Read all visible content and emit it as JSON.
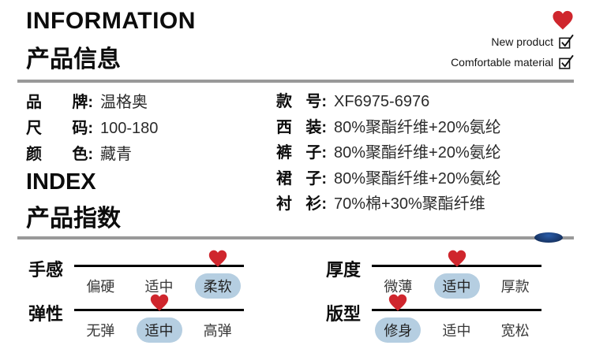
{
  "header": {
    "title_en": "INFORMATION",
    "title_zh": "产品信息",
    "features": [
      {
        "label": "New product",
        "checked": true
      },
      {
        "label": "Comfortable material",
        "checked": true
      }
    ]
  },
  "punct": {
    "colon": ":"
  },
  "info": {
    "left": [
      {
        "label": "品牌",
        "value": "温格奥"
      },
      {
        "label": "尺码",
        "value": "100-180"
      },
      {
        "label": "颜色",
        "value": "藏青"
      }
    ],
    "right": [
      {
        "label": "款号",
        "value": "XF6975-6976"
      },
      {
        "label": "西装",
        "value": "80%聚酯纤维+20%氨纶"
      },
      {
        "label": "裤子",
        "value": "80%聚酯纤维+20%氨纶"
      },
      {
        "label": "裙子",
        "value": "80%聚酯纤维+20%氨纶"
      },
      {
        "label": "衬衫",
        "value": "70%棉+30%聚酯纤维"
      }
    ]
  },
  "index": {
    "title_en": "INDEX",
    "title_zh": "产品指数",
    "scales": [
      {
        "label": "手感",
        "options": [
          "偏硬",
          "适中",
          "柔软"
        ],
        "selected": 2
      },
      {
        "label": "厚度",
        "options": [
          "微薄",
          "适中",
          "厚款"
        ],
        "selected": 1
      },
      {
        "label": "弹性",
        "options": [
          "无弹",
          "适中",
          "高弹"
        ],
        "selected": 1
      },
      {
        "label": "版型",
        "options": [
          "修身",
          "适中",
          "宽松"
        ],
        "selected": 0
      }
    ]
  },
  "icons": {
    "favorite": "heart-icon",
    "feature_checkbox": "checkbox-checked-icon",
    "scale_marker": "heart-marker-icon"
  },
  "colors": {
    "heart_red": "#cf262d",
    "pill_blue": "#b5cee1",
    "divider_gray": "#999999",
    "line_black": "#000000",
    "navy_accent": "#1b3d74",
    "text_black": "#0c0c0c"
  }
}
